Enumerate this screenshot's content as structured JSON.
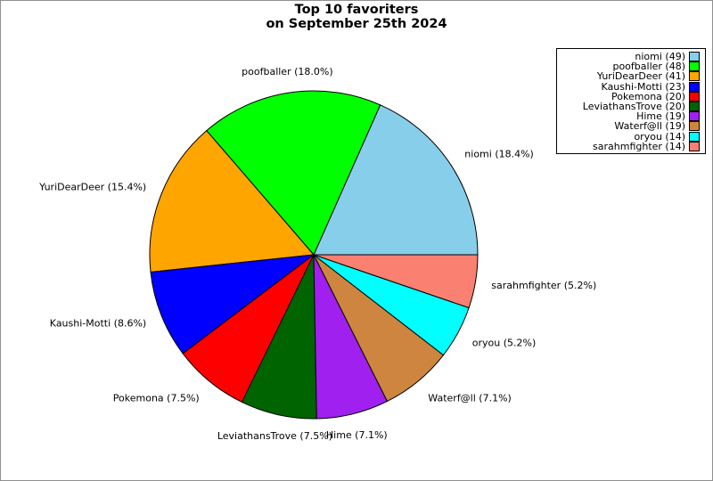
{
  "title": {
    "line1": "Top 10 favoriters",
    "line2": "on September 25th 2024"
  },
  "colors": {
    "background": "#FFFFFF",
    "figure_border": "#909090",
    "slice_edge": "#000000",
    "legend_border": "#000000",
    "text": "#000000"
  },
  "chart_data": {
    "type": "pie",
    "title": "Top 10 favoriters on September 25th 2024",
    "start_angle_deg": 0,
    "direction": "counterclockwise",
    "total": 267,
    "legend_position": "upper right",
    "slices": [
      {
        "name": "niomi",
        "value": 49,
        "pct": 18.4,
        "label": "niomi (18.4%)",
        "legend_label": "niomi (49)",
        "color": "#87CEEB"
      },
      {
        "name": "poofballer",
        "value": 48,
        "pct": 18.0,
        "label": "poofballer (18.0%)",
        "legend_label": "poofballer (48)",
        "color": "#00FF00"
      },
      {
        "name": "YuriDearDeer",
        "value": 41,
        "pct": 15.4,
        "label": "YuriDearDeer (15.4%)",
        "legend_label": "YuriDearDeer (41)",
        "color": "#FFA500"
      },
      {
        "name": "Kaushi-Motti",
        "value": 23,
        "pct": 8.6,
        "label": "Kaushi-Motti (8.6%)",
        "legend_label": "Kaushi-Motti (23)",
        "color": "#0000FF"
      },
      {
        "name": "Pokemona",
        "value": 20,
        "pct": 7.5,
        "label": "Pokemona (7.5%)",
        "legend_label": "Pokemona (20)",
        "color": "#FF0000"
      },
      {
        "name": "LeviathansTrove",
        "value": 20,
        "pct": 7.5,
        "label": "LeviathansTrove (7.5%)",
        "legend_label": "LeviathansTrove (20)",
        "color": "#006400"
      },
      {
        "name": "Hime",
        "value": 19,
        "pct": 7.1,
        "label": "Hime (7.1%)",
        "legend_label": "Hime (19)",
        "color": "#A020F0"
      },
      {
        "name": "Waterf@ll",
        "value": 19,
        "pct": 7.1,
        "label": "Waterf@ll (7.1%)",
        "legend_label": "Waterf@ll (19)",
        "color": "#CD853F"
      },
      {
        "name": "oryou",
        "value": 14,
        "pct": 5.2,
        "label": "oryou (5.2%)",
        "legend_label": "oryou (14)",
        "color": "#00FFFF"
      },
      {
        "name": "sarahmfighter",
        "value": 14,
        "pct": 5.2,
        "label": "sarahmfighter (5.2%)",
        "legend_label": "sarahmfighter (14)",
        "color": "#FA8072"
      }
    ]
  }
}
